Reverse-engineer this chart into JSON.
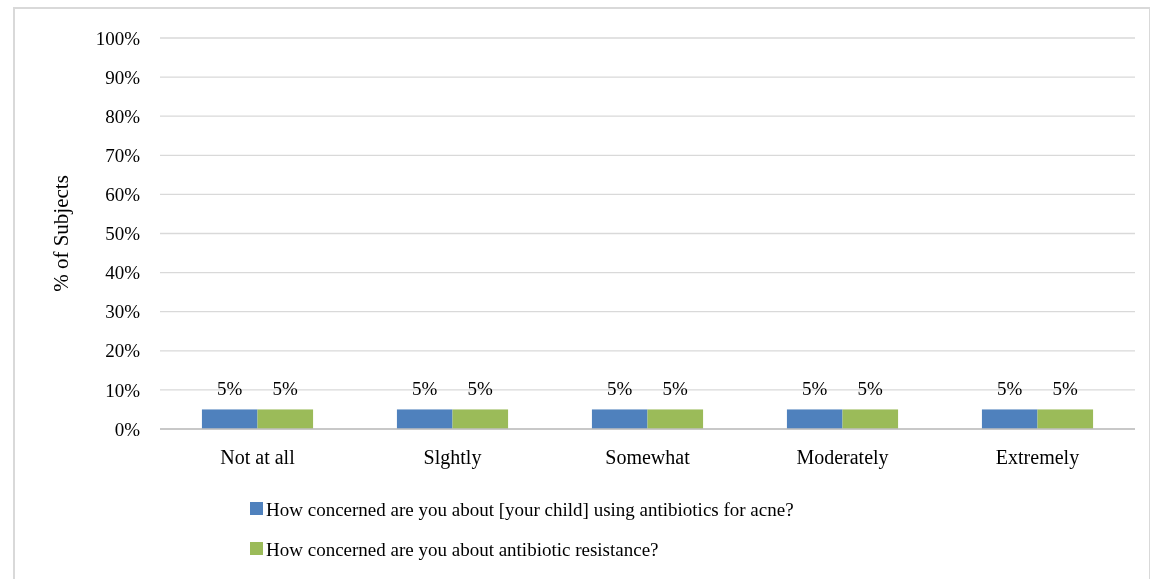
{
  "chart_data": {
    "type": "bar",
    "ylabel": "% of Subjects",
    "categories": [
      "Not at all",
      "Slghtly",
      "Somewhat",
      "Moderately",
      "Extremely"
    ],
    "series": [
      {
        "name": "How concerned are you about [your child] using antibiotics for acne?",
        "color": "#4f81bd",
        "values": [
          5,
          5,
          5,
          5,
          5
        ],
        "value_labels": [
          "5%",
          "5%",
          "5%",
          "5%",
          "5%"
        ]
      },
      {
        "name": "How concerned are you about antibiotic resistance?",
        "color": "#9bbb59",
        "values": [
          5,
          5,
          5,
          5,
          5
        ],
        "value_labels": [
          "5%",
          "5%",
          "5%",
          "5%",
          "5%"
        ]
      }
    ],
    "ylim": [
      0,
      100
    ],
    "yticks": [
      {
        "value": 0,
        "label": "0%"
      },
      {
        "value": 10,
        "label": "10%"
      },
      {
        "value": 20,
        "label": "20%"
      },
      {
        "value": 30,
        "label": "30%"
      },
      {
        "value": 40,
        "label": "40%"
      },
      {
        "value": 50,
        "label": "50%"
      },
      {
        "value": 60,
        "label": "60%"
      },
      {
        "value": 70,
        "label": "70%"
      },
      {
        "value": 80,
        "label": "80%"
      },
      {
        "value": 90,
        "label": "90%"
      },
      {
        "value": 100,
        "label": "100%"
      }
    ],
    "grid": "y",
    "legend": "bottom"
  }
}
